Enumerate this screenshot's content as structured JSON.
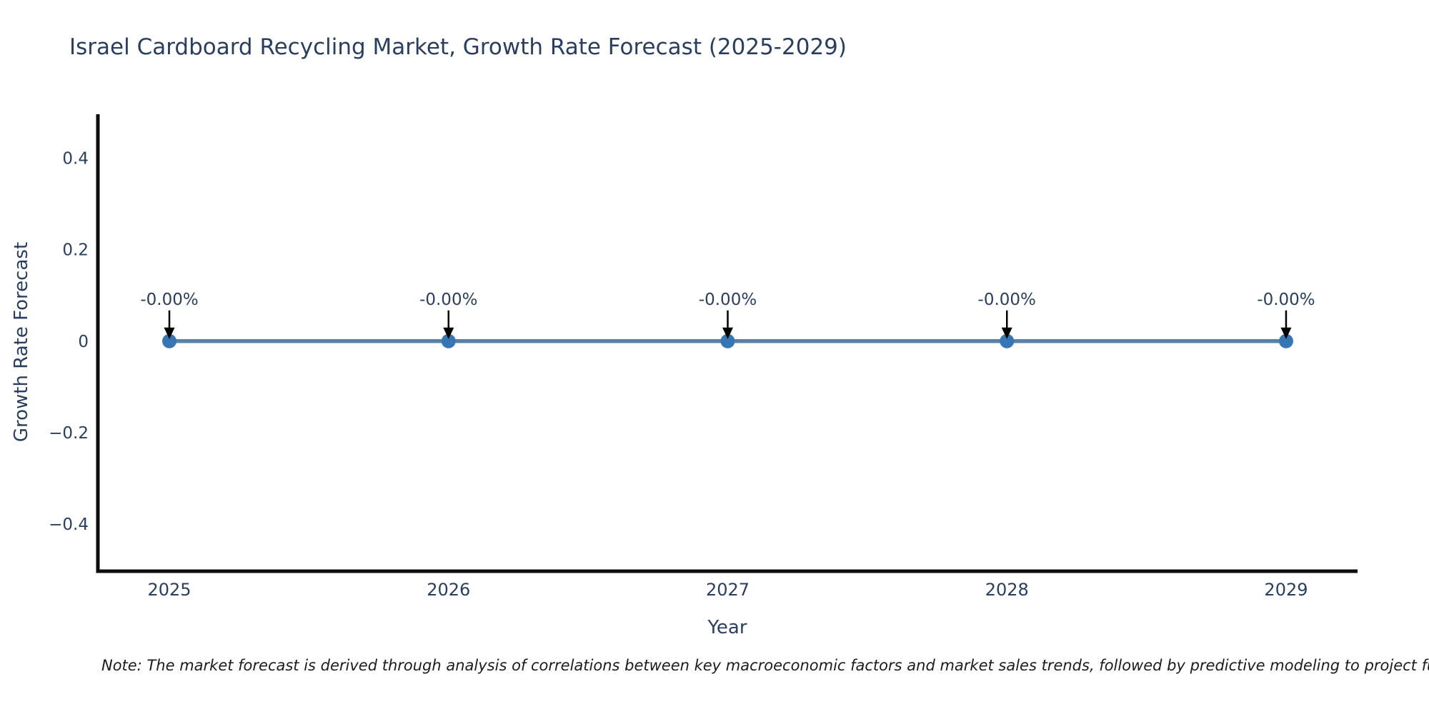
{
  "title": "Israel Cardboard Recycling Market, Growth Rate Forecast (2025-2029)",
  "note": {
    "text": "Note: The market forecast is derived through analysis of correlations between key macroeconomic factors and market sales trends, followed by predictive modeling to project future sa"
  },
  "chart_data": {
    "type": "line",
    "title": "Israel Cardboard Recycling Market, Growth Rate Forecast (2025-2029)",
    "xlabel": "Year",
    "ylabel": "Growth Rate Forecast",
    "x": [
      2025,
      2026,
      2027,
      2028,
      2029
    ],
    "y": [
      0,
      0,
      0,
      0,
      0
    ],
    "point_labels": [
      "-0.00%",
      "-0.00%",
      "-0.00%",
      "-0.00%",
      "-0.00%"
    ],
    "x_ticks": {
      "values": [
        2025,
        2026,
        2027,
        2028,
        2029
      ],
      "labels": [
        "2025",
        "2026",
        "2027",
        "2028",
        "2029"
      ]
    },
    "y_ticks": {
      "values": [
        0.4,
        0.2,
        0,
        -0.2,
        -0.4
      ],
      "labels": [
        "0.4",
        "0.2",
        "0",
        "−0.2",
        "−0.4"
      ]
    },
    "xlim": [
      2024.744,
      2029.256
    ],
    "ylim": [
      -0.503,
      0.496
    ],
    "grid": false,
    "legend": "none",
    "colors": {
      "line": "#5a80a5",
      "marker": "#3776b4",
      "axis": "#0d0d0d",
      "text": "#2a3f5f",
      "annotation_text": "#2a3f5f",
      "annotation_arrow": "#000000"
    }
  }
}
